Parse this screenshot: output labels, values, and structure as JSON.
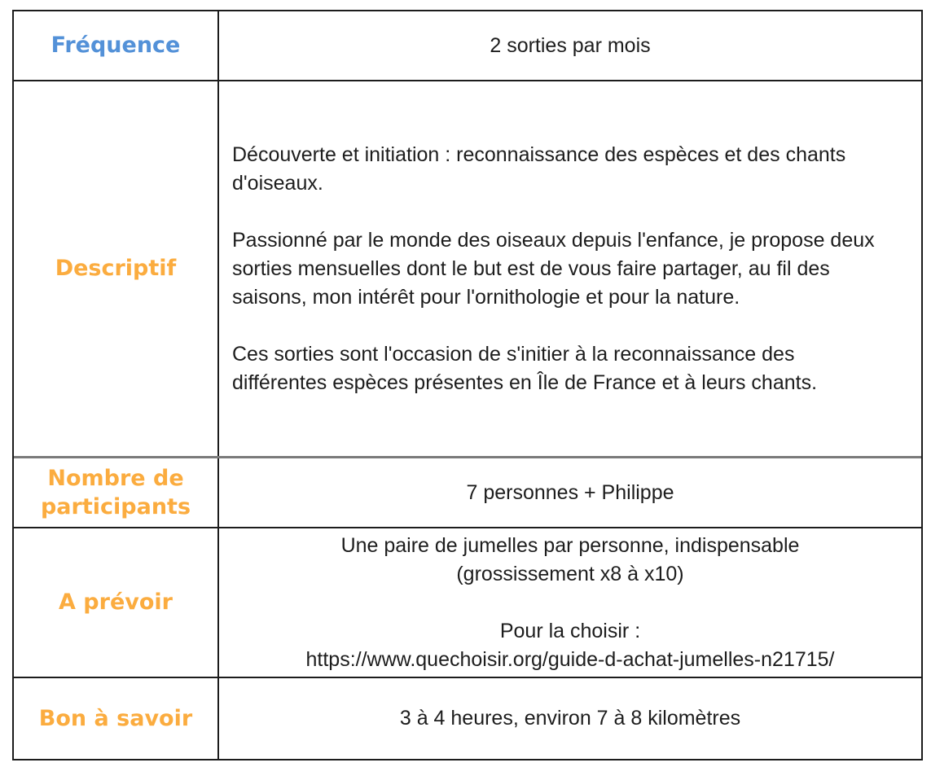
{
  "colors": {
    "label_blue": "#5391d8",
    "label_orange": "#fbac3f",
    "body_text": "#1d1d1d",
    "border": "#1c1c1c",
    "border_soft": "#7a7a7a"
  },
  "table": {
    "rows": [
      {
        "label": "Fréquence",
        "label_color": "#5391d8",
        "value": "2 sorties par mois"
      },
      {
        "label": "Descriptif",
        "label_color": "#fbac3f",
        "p1": "Découverte et initiation : reconnaissance des espèces et des chants d'oiseaux.",
        "p2": "Passionné par le monde des oiseaux depuis l'enfance, je propose deux sorties mensuelles dont le but est de vous faire partager, au fil des saisons, mon intérêt pour l'ornithologie et pour la nature.",
        "p3": "Ces sorties sont l'occasion de s'initier à la reconnaissance des différentes espèces présentes en Île de France et à leurs chants."
      },
      {
        "label": "Nombre de participants",
        "label_color": "#fbac3f",
        "value": "7 personnes + Philippe"
      },
      {
        "label": "A prévoir",
        "label_color": "#fbac3f",
        "line1": "Une paire de jumelles par personne, indispensable",
        "line2": "(grossissement x8 à x10)",
        "line3": "Pour la choisir :",
        "url": "https://www.quechoisir.org/guide-d-achat-jumelles-n21715/"
      },
      {
        "label": "Bon à savoir",
        "label_color": "#fbac3f",
        "value": "3 à 4 heures, environ 7 à 8 kilomètres"
      }
    ]
  }
}
